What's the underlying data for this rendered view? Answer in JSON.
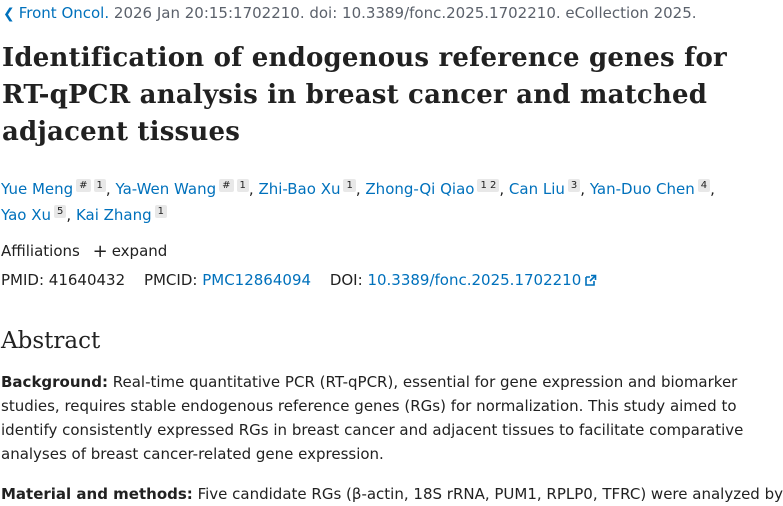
{
  "citation": {
    "journal": "Front Oncol.",
    "details": "2026 Jan 20:15:1702210. doi: 10.3389/fonc.2025.1702210. eCollection 2025."
  },
  "article": {
    "title": "Identification of endogenous reference genes for RT-qPCR analysis in breast cancer and matched adjacent tissues",
    "authors": [
      {
        "name": "Yue Meng",
        "equal": "#",
        "affs": "1"
      },
      {
        "name": "Ya-Wen Wang",
        "equal": "#",
        "affs": "1"
      },
      {
        "name": "Zhi-Bao Xu",
        "affs": "1"
      },
      {
        "name": "Zhong-Qi Qiao",
        "affs": "1 2"
      },
      {
        "name": "Can Liu",
        "affs": "3"
      },
      {
        "name": "Yan-Duo Chen",
        "affs": "4"
      },
      {
        "name": "Yao Xu",
        "affs": "5"
      },
      {
        "name": "Kai Zhang",
        "affs": "1"
      }
    ],
    "affiliations_label": "Affiliations",
    "expand_label": "expand",
    "pmid_label": "PMID:",
    "pmid": "41640432",
    "pmcid_label": "PMCID:",
    "pmcid": "PMC12864094",
    "doi_label": "DOI:",
    "doi": "10.3389/fonc.2025.1702210"
  },
  "abstract": {
    "heading": "Abstract",
    "background_label": "Background:",
    "background_text": "Real-time quantitative PCR (RT-qPCR), essential for gene expression and biomarker studies, requires stable endogenous reference genes (RGs) for normalization. This study aimed to identify consistently expressed RGs in breast cancer and adjacent tissues to facilitate comparative analyses of breast cancer-related gene expression.",
    "methods_label": "Material and methods:",
    "methods_text": "Five candidate RGs (β-actin, 18S rRNA, PUM1, RPLP0, TFRC) were analyzed by"
  }
}
